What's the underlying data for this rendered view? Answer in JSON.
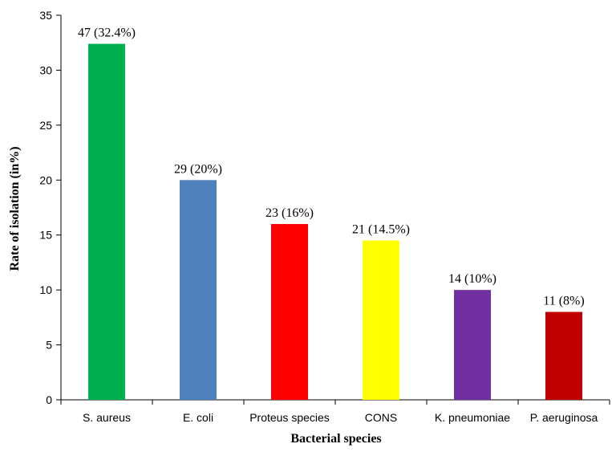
{
  "chart_data": {
    "type": "bar",
    "categories": [
      "S. aureus",
      "E. coli",
      "Proteus species",
      "CONS",
      "K. pneumoniae",
      "P. aeruginosa"
    ],
    "values": [
      32.4,
      20,
      16,
      14.5,
      10,
      8
    ],
    "data_labels": [
      "47 (32.4%)",
      "29 (20%)",
      "23 (16%)",
      "21 (14.5%)",
      "14 (10%)",
      "11 (8%)"
    ],
    "colors": [
      "#00b050",
      "#4f81bd",
      "#ff0000",
      "#ffff00",
      "#7030a0",
      "#c00000"
    ],
    "xlabel": "Bacterial species",
    "ylabel": "Rate of isolation (in%)",
    "ylim": [
      0,
      35
    ],
    "yticks": [
      0,
      5,
      10,
      15,
      20,
      25,
      30,
      35
    ],
    "grid": false,
    "legend": "none"
  }
}
